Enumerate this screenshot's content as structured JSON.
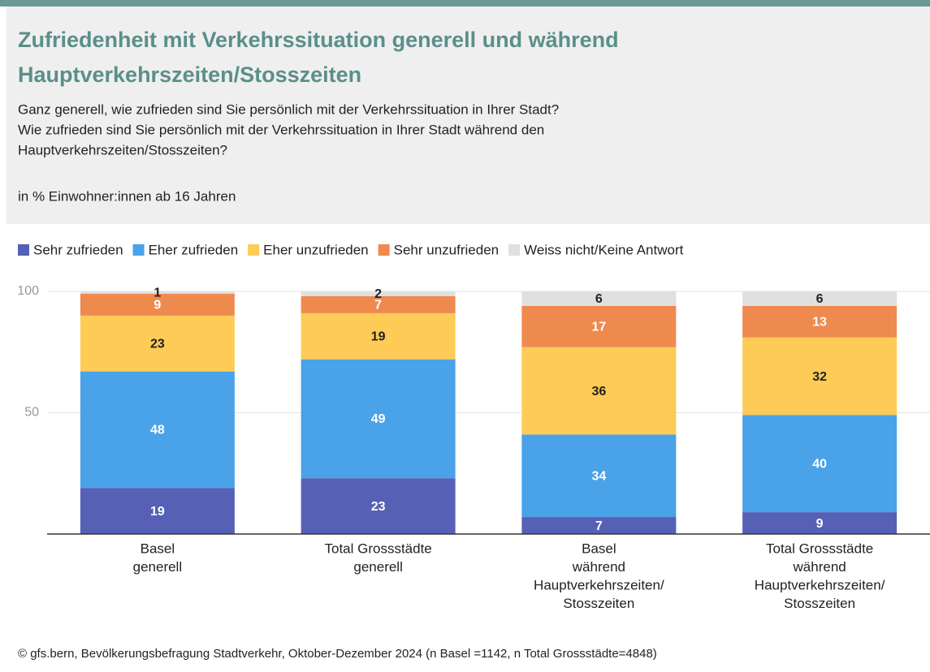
{
  "chart_data": {
    "type": "stacked_bar",
    "title": [
      "Zufriedenheit mit Verkehrssituation generell und während",
      "Hauptverkehrszeiten/Stosszeiten"
    ],
    "subtitle": [
      "Ganz generell, wie zufrieden sind Sie persönlich mit der Verkehrssituation in Ihrer Stadt?",
      "Wie zufrieden sind Sie persönlich mit der Verkehrssituation in Ihrer Stadt während den",
      "Hauptverkehrszeiten/Stosszeiten?"
    ],
    "unit_note": "in % Einwohner:innen ab 16 Jahren",
    "categories": [
      [
        "Basel",
        "generell"
      ],
      [
        "Total Grossstädte",
        "generell"
      ],
      [
        "Basel",
        "während",
        "Hauptverkehrszeiten/",
        "Stosszeiten"
      ],
      [
        "Total Grossstädte",
        "während",
        "Hauptverkehrszeiten/",
        "Stosszeiten"
      ]
    ],
    "series": [
      {
        "name": "Sehr zufrieden",
        "color": "#5660b4",
        "values": [
          19,
          23,
          7,
          9
        ]
      },
      {
        "name": "Eher zufrieden",
        "color": "#4aa2e8",
        "values": [
          48,
          49,
          34,
          40
        ]
      },
      {
        "name": "Eher unzufrieden",
        "color": "#fdcb56",
        "values": [
          23,
          19,
          36,
          32
        ]
      },
      {
        "name": "Sehr unzufrieden",
        "color": "#ef8a4f",
        "values": [
          9,
          7,
          17,
          13
        ]
      },
      {
        "name": "Weiss nicht/Keine Antwort",
        "color": "#e0e0e0",
        "values": [
          1,
          2,
          6,
          6
        ]
      }
    ],
    "ylim": [
      0,
      100
    ],
    "yticks": [
      50,
      100
    ],
    "grid": true,
    "source": "© gfs.bern, Bevölkerungsbefragung Stadtverkehr, Oktober-Dezember 2024 (n Basel =1142, n Total Grossstädte=4848)"
  }
}
